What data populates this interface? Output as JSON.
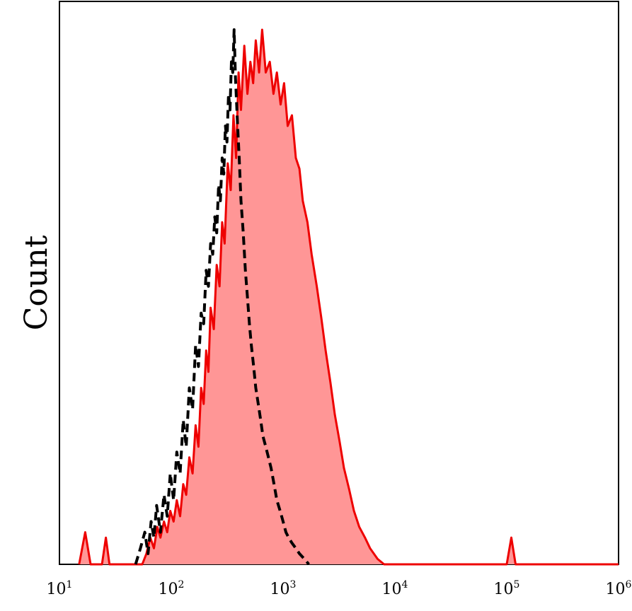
{
  "chart_data": {
    "type": "area",
    "title": "",
    "xlabel": "",
    "ylabel": "Count",
    "x_scale": "log",
    "xlim": [
      10,
      1000000
    ],
    "ylim": [
      0,
      100
    ],
    "grid": false,
    "x_ticks": [
      {
        "base": "10",
        "exp": "1",
        "value": 10
      },
      {
        "base": "10",
        "exp": "2",
        "value": 100
      },
      {
        "base": "10",
        "exp": "3",
        "value": 1000
      },
      {
        "base": "10",
        "exp": "4",
        "value": 10000
      },
      {
        "base": "10",
        "exp": "5",
        "value": 100000
      },
      {
        "base": "10",
        "exp": "6",
        "value": 1000000
      }
    ],
    "series": [
      {
        "style": "dashed",
        "line_color": "#000000",
        "fill": "none",
        "points": [
          [
            48,
            0
          ],
          [
            53,
            3
          ],
          [
            58,
            6
          ],
          [
            62,
            2
          ],
          [
            66,
            8
          ],
          [
            70,
            5
          ],
          [
            74,
            11
          ],
          [
            80,
            6
          ],
          [
            86,
            13
          ],
          [
            92,
            9
          ],
          [
            98,
            17
          ],
          [
            105,
            12
          ],
          [
            112,
            21
          ],
          [
            120,
            17
          ],
          [
            128,
            27
          ],
          [
            136,
            22
          ],
          [
            145,
            33
          ],
          [
            155,
            29
          ],
          [
            165,
            41
          ],
          [
            175,
            37
          ],
          [
            185,
            47
          ],
          [
            195,
            45
          ],
          [
            205,
            55
          ],
          [
            215,
            52
          ],
          [
            225,
            60
          ],
          [
            235,
            58
          ],
          [
            245,
            65
          ],
          [
            255,
            62
          ],
          [
            265,
            71
          ],
          [
            275,
            68
          ],
          [
            285,
            76
          ],
          [
            295,
            73
          ],
          [
            305,
            82
          ],
          [
            315,
            79
          ],
          [
            325,
            88
          ],
          [
            335,
            85
          ],
          [
            345,
            94
          ],
          [
            355,
            92
          ],
          [
            365,
            100
          ],
          [
            375,
            91
          ],
          [
            390,
            83
          ],
          [
            405,
            76
          ],
          [
            420,
            68
          ],
          [
            440,
            62
          ],
          [
            460,
            55
          ],
          [
            480,
            50
          ],
          [
            500,
            45
          ],
          [
            520,
            41
          ],
          [
            545,
            37
          ],
          [
            570,
            33
          ],
          [
            600,
            30
          ],
          [
            630,
            27
          ],
          [
            660,
            24
          ],
          [
            700,
            22
          ],
          [
            740,
            20
          ],
          [
            780,
            18
          ],
          [
            830,
            15
          ],
          [
            880,
            12
          ],
          [
            940,
            10
          ],
          [
            1000,
            8
          ],
          [
            1060,
            6
          ],
          [
            1120,
            5
          ],
          [
            1200,
            4
          ],
          [
            1300,
            3
          ],
          [
            1400,
            2
          ],
          [
            1550,
            1
          ],
          [
            1700,
            0
          ]
        ]
      },
      {
        "style": "solid-filled",
        "line_color": "#ee0000",
        "fill": "#ff9696",
        "points": [
          [
            15,
            0
          ],
          [
            17,
            6
          ],
          [
            19,
            0
          ],
          [
            24,
            0
          ],
          [
            26,
            5
          ],
          [
            28,
            0
          ],
          [
            38,
            0
          ],
          [
            55,
            0
          ],
          [
            60,
            2
          ],
          [
            65,
            5
          ],
          [
            70,
            3
          ],
          [
            75,
            7
          ],
          [
            80,
            5
          ],
          [
            86,
            8
          ],
          [
            92,
            6
          ],
          [
            98,
            10
          ],
          [
            105,
            8
          ],
          [
            112,
            12
          ],
          [
            120,
            9
          ],
          [
            128,
            15
          ],
          [
            136,
            13
          ],
          [
            145,
            20
          ],
          [
            155,
            17
          ],
          [
            165,
            26
          ],
          [
            175,
            22
          ],
          [
            185,
            33
          ],
          [
            195,
            30
          ],
          [
            205,
            40
          ],
          [
            215,
            36
          ],
          [
            225,
            48
          ],
          [
            240,
            44
          ],
          [
            255,
            56
          ],
          [
            270,
            52
          ],
          [
            285,
            64
          ],
          [
            300,
            60
          ],
          [
            320,
            75
          ],
          [
            340,
            70
          ],
          [
            360,
            84
          ],
          [
            380,
            76
          ],
          [
            400,
            92
          ],
          [
            420,
            85
          ],
          [
            450,
            97
          ],
          [
            480,
            88
          ],
          [
            510,
            94
          ],
          [
            540,
            90
          ],
          [
            570,
            98
          ],
          [
            610,
            92
          ],
          [
            650,
            100
          ],
          [
            700,
            92
          ],
          [
            760,
            94
          ],
          [
            820,
            88
          ],
          [
            880,
            92
          ],
          [
            950,
            86
          ],
          [
            1020,
            90
          ],
          [
            1100,
            82
          ],
          [
            1200,
            84
          ],
          [
            1300,
            76
          ],
          [
            1400,
            74
          ],
          [
            1500,
            68
          ],
          [
            1650,
            64
          ],
          [
            1800,
            58
          ],
          [
            2000,
            52
          ],
          [
            2200,
            46
          ],
          [
            2400,
            40
          ],
          [
            2650,
            34
          ],
          [
            2900,
            28
          ],
          [
            3200,
            23
          ],
          [
            3500,
            18
          ],
          [
            3900,
            14
          ],
          [
            4300,
            10
          ],
          [
            4800,
            7
          ],
          [
            5400,
            5
          ],
          [
            6000,
            3
          ],
          [
            7000,
            1
          ],
          [
            8000,
            0
          ],
          [
            100000,
            0
          ],
          [
            110000,
            5
          ],
          [
            120000,
            0
          ],
          [
            1000000,
            0
          ]
        ]
      }
    ]
  }
}
